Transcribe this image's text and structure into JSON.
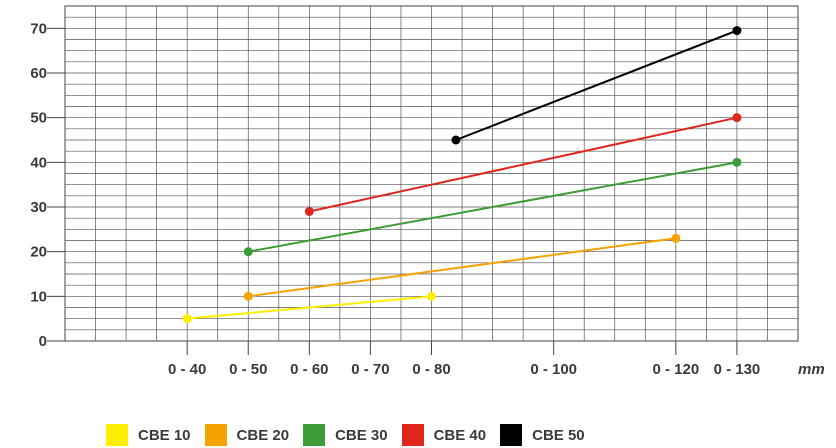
{
  "chart_data": {
    "type": "line",
    "unit_label": "mm",
    "yticks": [
      0,
      10,
      20,
      30,
      40,
      50,
      60,
      70
    ],
    "ylim": [
      0,
      75
    ],
    "x_categories": [
      "0 - 40",
      "0 - 50",
      "0 - 60",
      "0 - 70",
      "0 - 80",
      "0 - 100",
      "0 - 120",
      "0 - 130"
    ],
    "x_category_positions": [
      40,
      50,
      60,
      70,
      80,
      100,
      120,
      130
    ],
    "xlim": [
      20,
      140
    ],
    "grid": true,
    "legend_placement": "bottom",
    "series": [
      {
        "name": "CBE 10",
        "color": "#ffee00",
        "points": [
          [
            40,
            5
          ],
          [
            80,
            10
          ]
        ]
      },
      {
        "name": "CBE 20",
        "color": "#f5a300",
        "points": [
          [
            50,
            10
          ],
          [
            120,
            23
          ]
        ]
      },
      {
        "name": "CBE 30",
        "color": "#3c9c35",
        "points": [
          [
            50,
            20
          ],
          [
            130,
            40
          ]
        ]
      },
      {
        "name": "CBE 40",
        "color": "#e0261c",
        "points": [
          [
            60,
            29
          ],
          [
            130,
            50
          ]
        ]
      },
      {
        "name": "CBE 50",
        "color": "#000000",
        "points": [
          [
            84,
            45
          ],
          [
            130,
            69.5
          ]
        ]
      }
    ]
  }
}
